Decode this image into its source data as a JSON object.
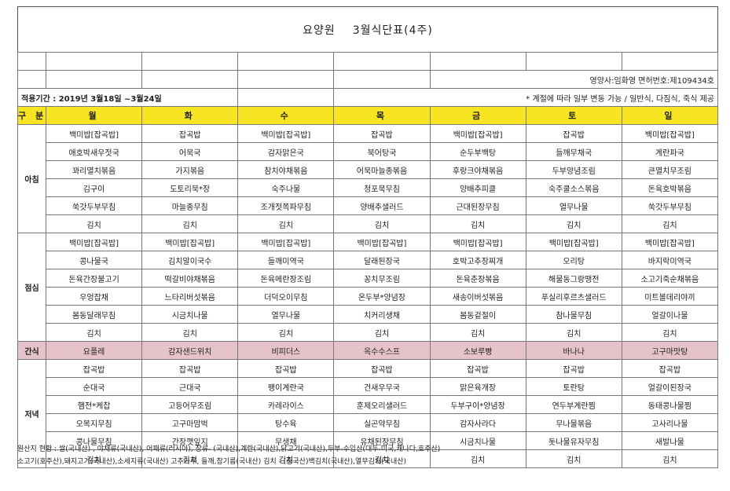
{
  "title": {
    "org": "요양원",
    "name": "3월식단표(4주)"
  },
  "staff": "영양사:임화영  면허번호:제109434호",
  "period": "적용기간 : 2019년 3월18일 ~3월24일",
  "note": "* 계절에 따라 일부 변동 가능 / 일반식, 다짐식, 죽식 제공",
  "header": {
    "label": "구 분",
    "days": [
      "월",
      "화",
      "수",
      "목",
      "금",
      "토",
      "일"
    ]
  },
  "meals": [
    {
      "label": "아침",
      "rows": [
        [
          "백미밥[잡곡밥]",
          "잡곡밥",
          "백미밥[잡곡밥]",
          "잡곡밥",
          "백미밥[잡곡밥]",
          "잡곡밥",
          "백미밥[잡곡밥]"
        ],
        [
          "애호박새우젓국",
          "어묵국",
          "감자맑은국",
          "북어탕국",
          "순두부백탕",
          "들깨무채국",
          "계란파국"
        ],
        [
          "꽈리멸치볶음",
          "가지볶음",
          "참치야채볶음",
          "어묵마늘종볶음",
          "후랑크야채볶음",
          "두부양념조림",
          "큰멸치무조림"
        ],
        [
          "김구이",
          "도토리묵*장",
          "숙주나물",
          "청포묵무침",
          "양배추피클",
          "숙주쿨소스볶음",
          "돈육호박볶음"
        ],
        [
          "쑥갓두부무침",
          "마늘종무침",
          "조개젓쪽파무침",
          "양배추샐러드",
          "근대된장무침",
          "열무나물",
          "쑥갓두부무침"
        ],
        [
          "김치",
          "김치",
          "김치",
          "김치",
          "김치",
          "김치",
          "김치"
        ]
      ]
    },
    {
      "label": "점심",
      "rows": [
        [
          "백미밥[잡곡밥]",
          "백미밥[잡곡밥]",
          "백미밥[잡곡밥]",
          "백미밥[잡곡밥]",
          "백미밥[잡곡밥]",
          "백미밥[잡곡밥]",
          "백미밥[잡곡밥]"
        ],
        [
          "콩나물국",
          "김치말이국수",
          "들깨미역국",
          "달래된장국",
          "호박고추장찌개",
          "오리탕",
          "바지락미역국"
        ],
        [
          "돈육간장불고기",
          "떡갈비야채볶음",
          "돈육메란장조림",
          "꽁치무조림",
          "돈육춘장볶음",
          "해물동그랑땡전",
          "소고기죽순채볶음"
        ],
        [
          "우엉잡채",
          "느타리버섯볶음",
          "더덕오이무침",
          "온두부*양념장",
          "새송이버섯볶음",
          "푸실리후르츠샐러드",
          "미트볼데리야끼"
        ],
        [
          "봄동달래무침",
          "시금치나물",
          "열무나물",
          "치커리생채",
          "봄동겉절이",
          "참나물무침",
          "얼갈이나물"
        ],
        [
          "김치",
          "김치",
          "김치",
          "김치",
          "김치",
          "김치",
          "김치"
        ]
      ]
    },
    {
      "label": "간식",
      "rows": [
        [
          "요플레",
          "감자샌드위치",
          "비피더스",
          "옥수수스프",
          "소보루빵",
          "바나나",
          "고구마맛탕"
        ]
      ]
    },
    {
      "label": "저녁",
      "rows": [
        [
          "잡곡밥",
          "잡곡밥",
          "잡곡밥",
          "잡곡밥",
          "잡곡밥",
          "잡곡밥",
          "잡곡밥"
        ],
        [
          "순대국",
          "근대국",
          "팽이계란국",
          "건새우무국",
          "맑은육개장",
          "토란탕",
          "얼갈이된장국"
        ],
        [
          "햄전*케찹",
          "고등어무조림",
          "카레라이스",
          "훈제오리샐러드",
          "두부구이*양념장",
          "연두부계란찜",
          "동태콩나물찜"
        ],
        [
          "오복지무침",
          "고구마맘벅",
          "탕수육",
          "실곤약무침",
          "감자사라다",
          "무나물볶음",
          "고사리나물"
        ],
        [
          "콩나물무침",
          "간장깻잎지",
          "무생채",
          "유채된장무침",
          "시금치나물",
          "돗나물유자무침",
          "새발나물"
        ],
        [
          "김치",
          "김치",
          "김치",
          "김치",
          "김치",
          "김치",
          "김치"
        ]
      ]
    }
  ],
  "footer": [
    "원산지 현황 : 쌀(국내산) , 야채류(국내산), 어패류(러시아),  장류- (국내산),계란(국내산),닭고기(국내산),두부-수입산(대두-미국,캐나다,호주산)",
    "소고기(호주산),돼지고기(국내산),소세지류(국내산) 고추가루, 들깨,참기름(국내산) 김치 - (중국산)백김치(국내산),열무김치(국내산)"
  ]
}
